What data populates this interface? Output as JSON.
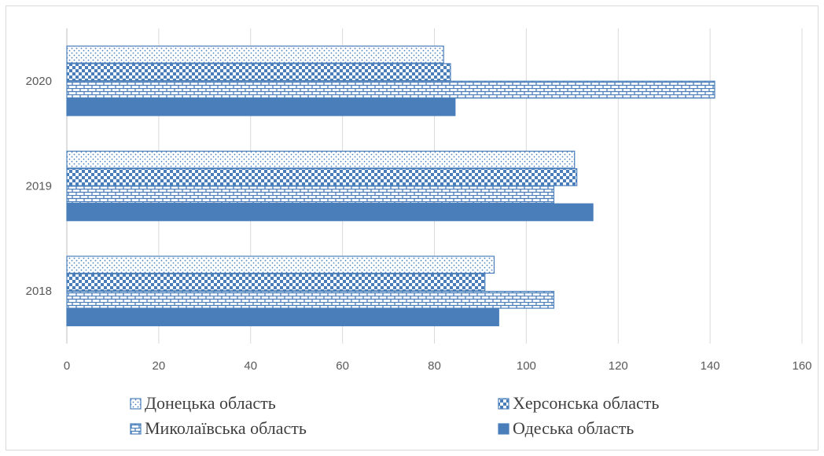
{
  "chart_data": {
    "type": "bar",
    "orientation": "horizontal",
    "categories": [
      "2018",
      "2019",
      "2020"
    ],
    "series": [
      {
        "name": "Донецька область",
        "values": [
          93,
          110.5,
          82
        ],
        "pattern": "dots"
      },
      {
        "name": "Херсонська область",
        "values": [
          91,
          111,
          83.5
        ],
        "pattern": "checker"
      },
      {
        "name": "Миколаївська область",
        "values": [
          106,
          106,
          141
        ],
        "pattern": "brick"
      },
      {
        "name": "Одеська область",
        "values": [
          94,
          114.5,
          84.5
        ],
        "pattern": "solid"
      }
    ],
    "xlim": [
      0,
      160
    ],
    "x_ticks": [
      "0",
      "20",
      "40",
      "60",
      "80",
      "100",
      "120",
      "140",
      "160"
    ],
    "grid": "vertical",
    "legend_position": "bottom",
    "color": "#4a7ebb"
  }
}
